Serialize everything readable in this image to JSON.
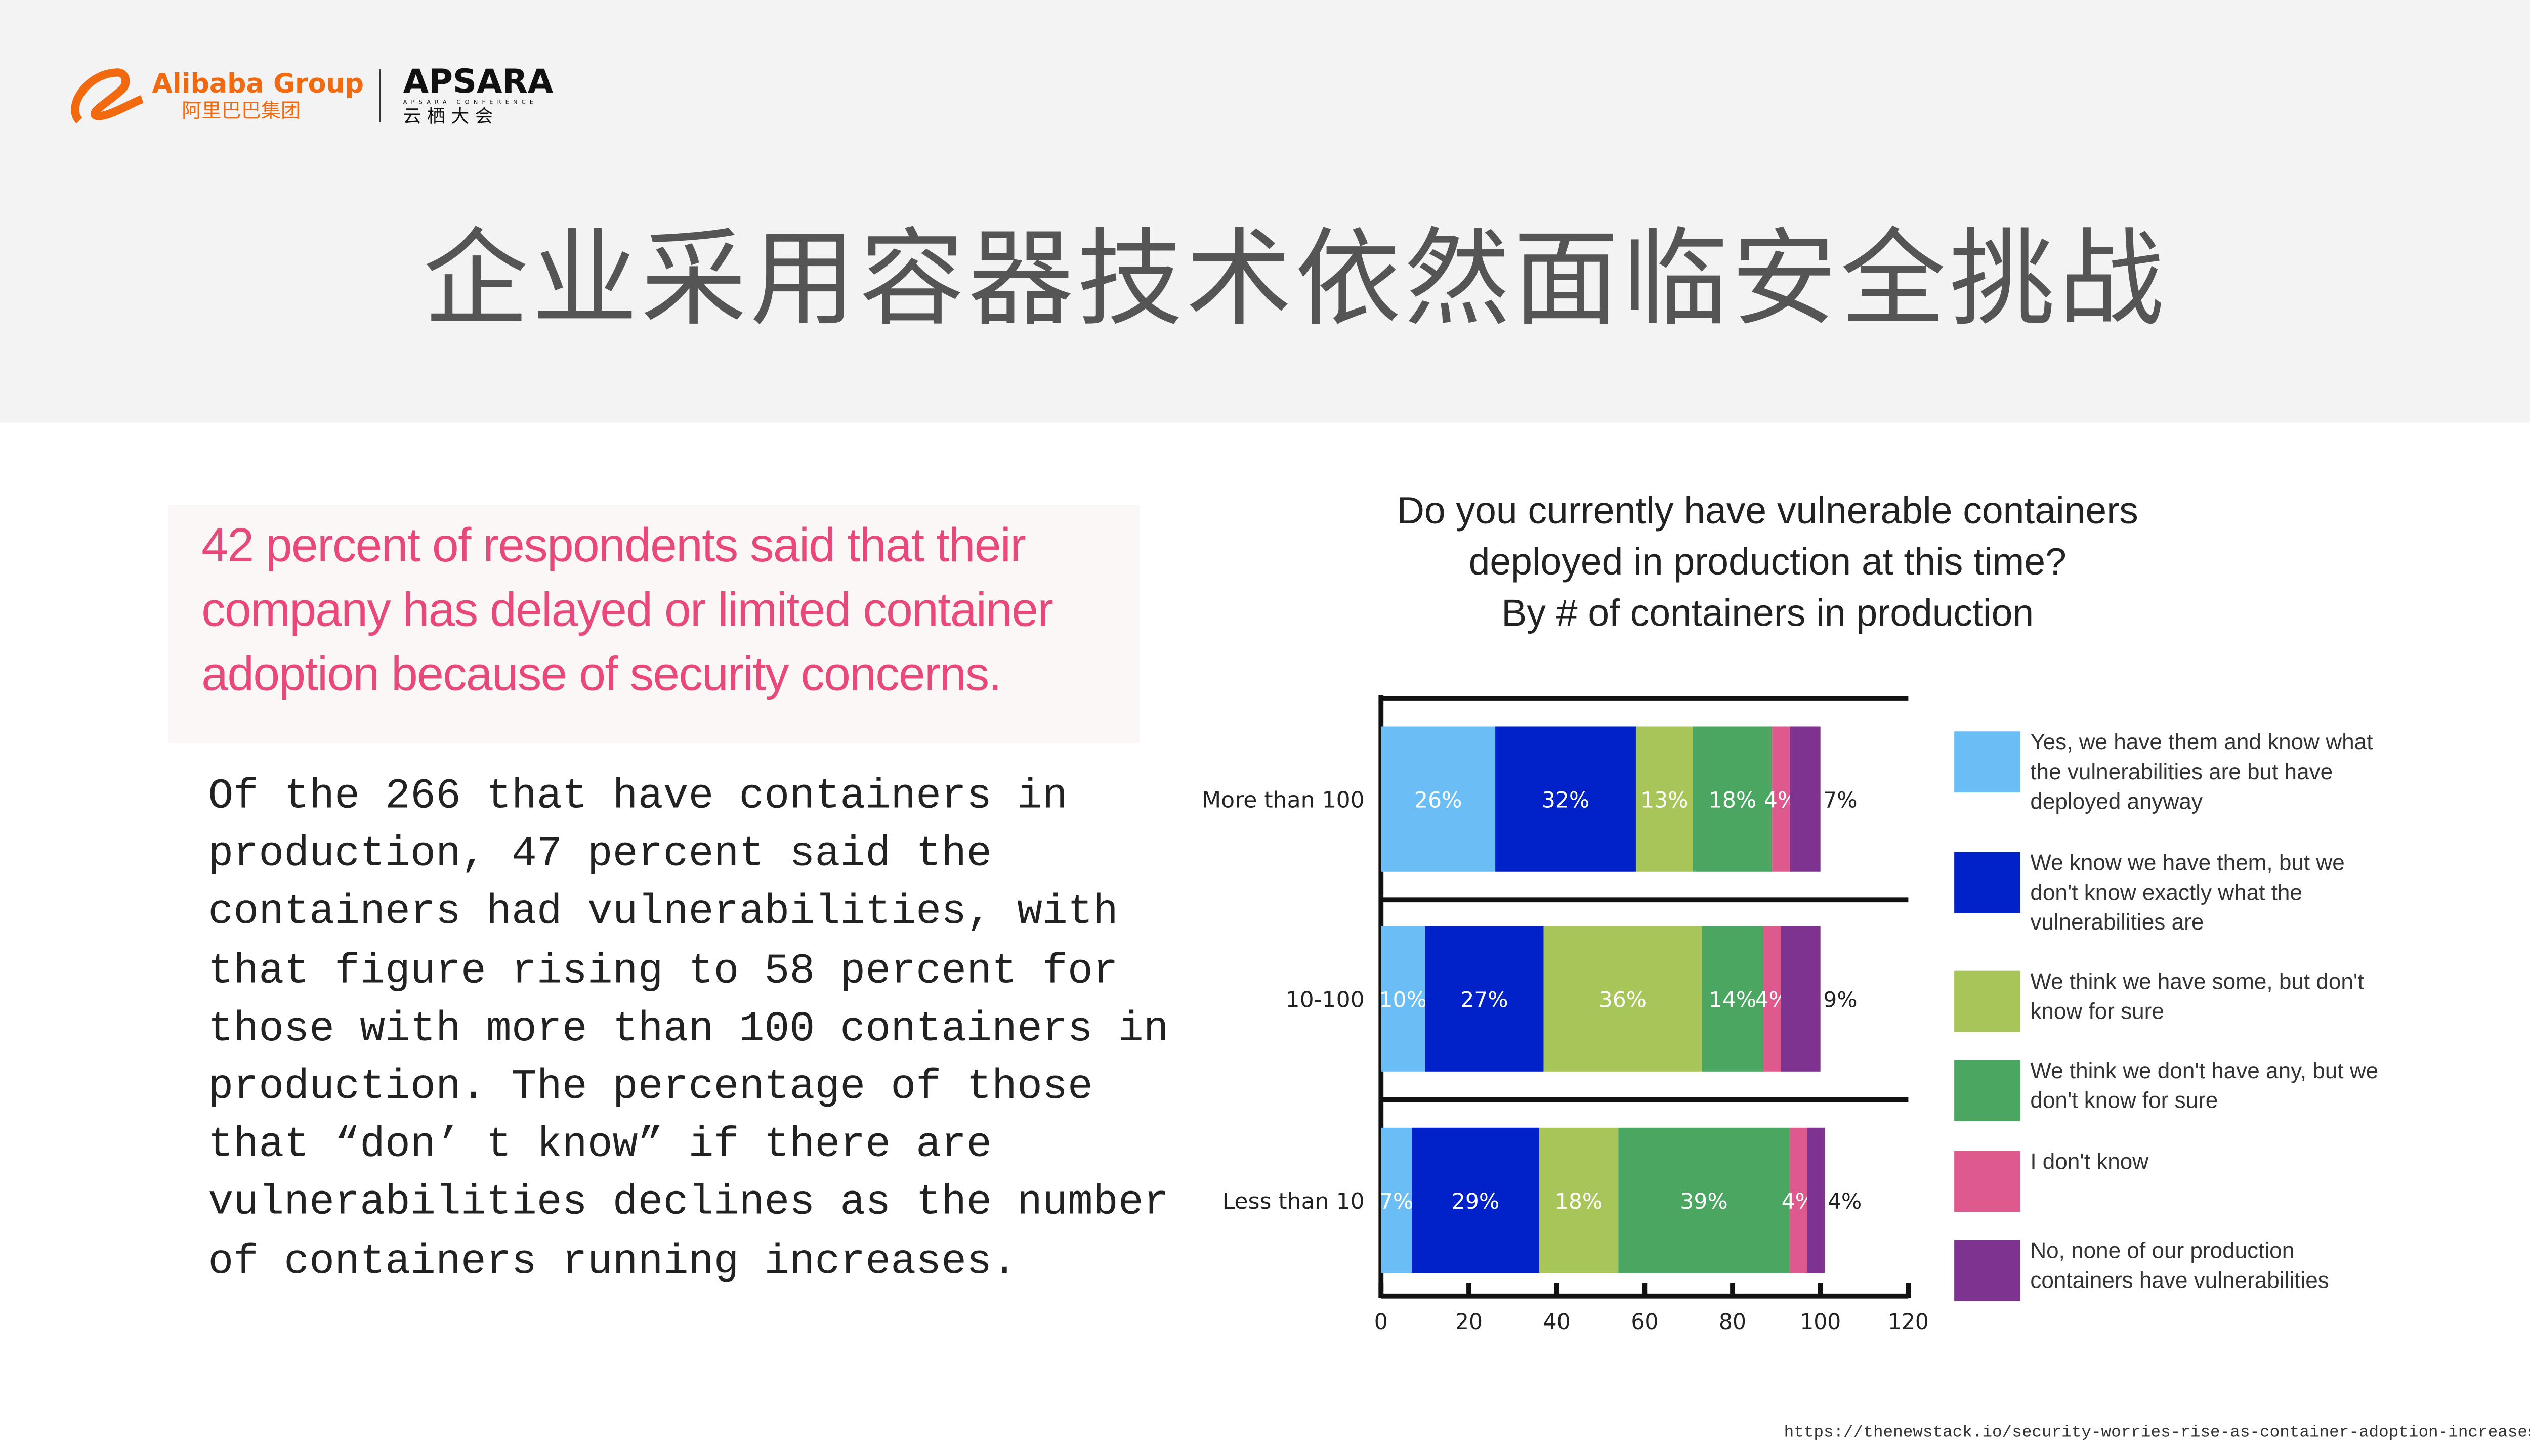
{
  "header": {
    "logo_alibaba_en": "Alibaba Group",
    "logo_alibaba_cn": "阿里巴巴集团",
    "logo_apsara": "APSARA",
    "logo_apsara_sub": "APSARA CONFERENCE",
    "logo_apsara_cn": "云 栖 大 会",
    "title": "企业采用容器技术依然面临安全挑战"
  },
  "highlight": "42 percent of respondents said that their company has delayed or limited container adoption because of security concerns.",
  "body_lines": [
    "Of the 266 that have containers in",
    "production, 47 percent said the",
    "containers had vulnerabilities, with",
    "that figure rising to 58 percent for",
    "those with more than 100 containers in",
    "production. The percentage of those",
    "that “don’ t know” if there are",
    "vulnerabilities declines as the number",
    "of containers running increases."
  ],
  "source": "https://thenewstack.io/security-worries-rise-as-container-adoption-increases/",
  "colors": [
    "#6bbdf5",
    "#0022c8",
    "#a8c55a",
    "#4aa661",
    "#de5a8e",
    "#7e3391"
  ],
  "chart_data": {
    "type": "bar",
    "orientation": "horizontal",
    "stacked": true,
    "title_lines": [
      "Do you currently have vulnerable containers",
      "deployed in production at this time?",
      "By # of containers in production"
    ],
    "categories": [
      "More than 100",
      "10-100",
      "Less than 10"
    ],
    "xlim": [
      0,
      120
    ],
    "xticks": [
      0,
      20,
      40,
      60,
      80,
      100,
      120
    ],
    "legend_position": "right",
    "series": [
      {
        "name": "Yes, we have them and know what the vulnerabilities are but have deployed anyway",
        "values": [
          26,
          10,
          7
        ]
      },
      {
        "name": "We know we have them, but we don't know exactly what the vulnerabilities are",
        "values": [
          32,
          27,
          29
        ]
      },
      {
        "name": "We think we have some, but don't know for sure",
        "values": [
          13,
          36,
          18
        ]
      },
      {
        "name": "We think we don't have any, but we don't know for sure",
        "values": [
          18,
          14,
          39
        ]
      },
      {
        "name": "I don't know",
        "values": [
          4,
          4,
          4
        ]
      },
      {
        "name": "No, none of our production containers have vulnerabilities",
        "values": [
          7,
          9,
          4
        ]
      }
    ]
  }
}
